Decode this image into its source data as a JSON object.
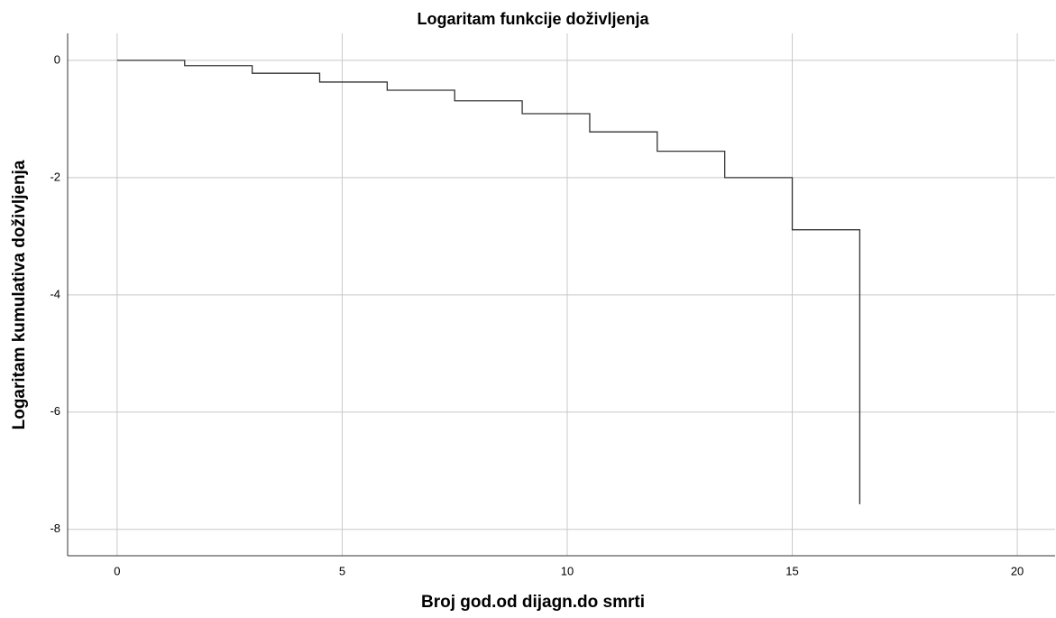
{
  "chart_data": {
    "type": "line",
    "title": "Logaritam funkcije doživljenja",
    "x_label": "Broj god.od dijagn.do smrti",
    "y_label": "Logaritam kumulativa doživljenja",
    "x": [
      0,
      1.5,
      1.5,
      3,
      3,
      4.5,
      4.5,
      6,
      6,
      7.5,
      7.5,
      9,
      9,
      10.5,
      10.5,
      12,
      12,
      13.5,
      13.5,
      15,
      15,
      16.5,
      16.5
    ],
    "series": [
      {
        "color": "#333333",
        "values": [
          0,
          0,
          -0.09,
          -0.09,
          -0.22,
          -0.22,
          -0.37,
          -0.37,
          -0.51,
          -0.51,
          -0.69,
          -0.69,
          -0.91,
          -0.91,
          -1.22,
          -1.22,
          -1.55,
          -1.55,
          -2.0,
          -2.0,
          -2.89,
          -2.89,
          -7.57
        ]
      }
    ],
    "xlim": [
      -1.1,
      20.84
    ],
    "xticks": [
      0,
      5,
      10,
      15,
      20
    ],
    "ylim": [
      -8.45,
      0.46
    ],
    "yticks": [
      0,
      -2,
      -4,
      -6,
      -8
    ],
    "grid": true
  }
}
